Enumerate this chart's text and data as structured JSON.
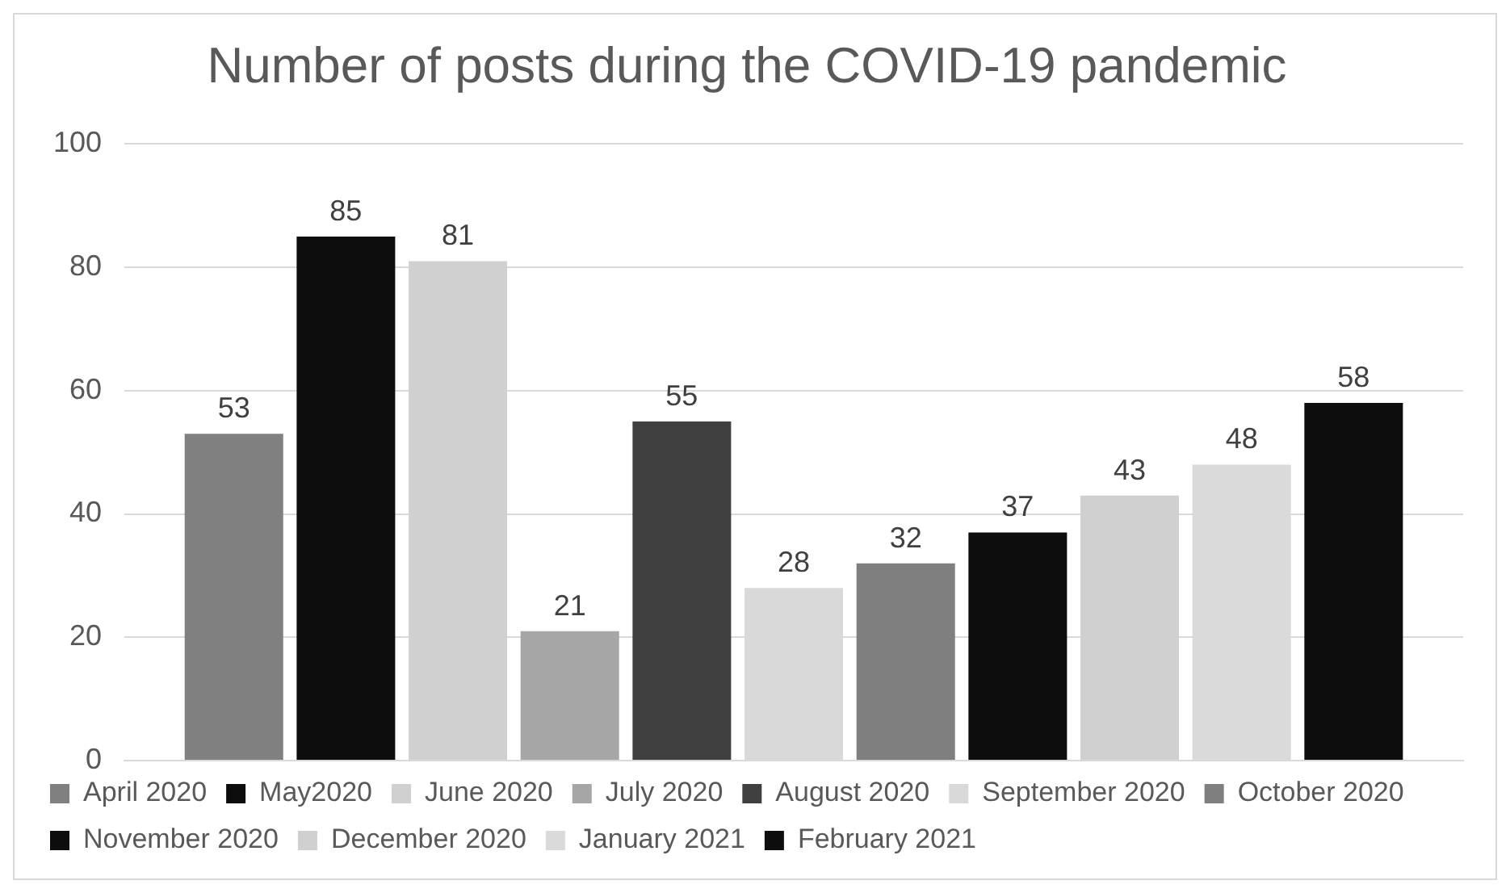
{
  "chart_data": {
    "type": "bar",
    "title": "Number of posts during the COVID-19 pandemic",
    "categories": [
      null
    ],
    "series": [
      {
        "name": "April 2020",
        "color": "#808080",
        "values": [
          53
        ]
      },
      {
        "name": "May2020",
        "color": "#0d0d0d",
        "values": [
          85
        ]
      },
      {
        "name": "June 2020",
        "color": "#d0d0d0",
        "values": [
          81
        ]
      },
      {
        "name": "July 2020",
        "color": "#a6a6a6",
        "values": [
          21
        ]
      },
      {
        "name": "August 2020",
        "color": "#404040",
        "values": [
          55
        ]
      },
      {
        "name": "September 2020",
        "color": "#d9d9d9",
        "values": [
          28
        ]
      },
      {
        "name": "October 2020",
        "color": "#7f7f7f",
        "values": [
          32
        ]
      },
      {
        "name": "November 2020",
        "color": "#0d0d0d",
        "values": [
          37
        ]
      },
      {
        "name": "December 2020",
        "color": "#d0d0d0",
        "values": [
          43
        ]
      },
      {
        "name": "January 2021",
        "color": "#dadada",
        "values": [
          48
        ]
      },
      {
        "name": "February 2021",
        "color": "#0d0d0d",
        "values": [
          58
        ]
      }
    ],
    "ylim": [
      0,
      100
    ],
    "yticks": [
      0,
      20,
      40,
      60,
      80,
      100
    ],
    "grid": "y",
    "legend": "bottom",
    "data_labels": true
  }
}
